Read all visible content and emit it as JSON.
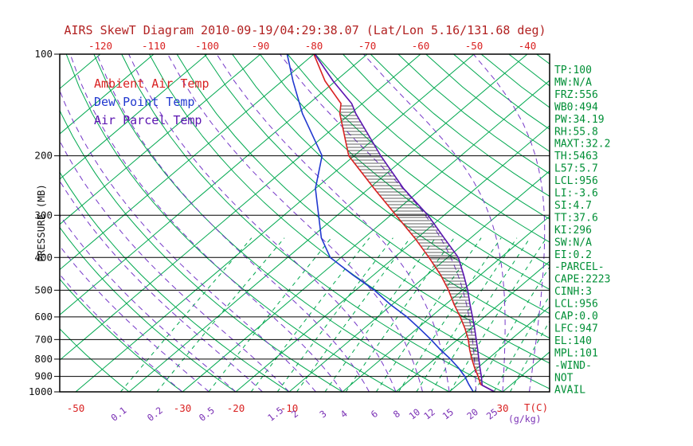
{
  "title": "AIRS SkewT Diagram 2010-09-19/04:29:38.07 (Lat/Lon 5.16/131.68 deg)",
  "colors": {
    "title": "#b22222",
    "grid_green": "#00a84f",
    "moist_adiabat_purple": "#7638c8",
    "mixing_label_purple": "#7a30b5",
    "axis_black": "#111111",
    "stats_green": "#008f36",
    "ambient_red": "#d92121",
    "dewpoint_blue": "#2138cf",
    "parcel_purple": "#5a14b0",
    "hatch_dark": "#2b2b2b"
  },
  "legend": [
    {
      "label": "Ambient Air Temp",
      "color": "#d92121"
    },
    {
      "label": "Dew Point Temp",
      "color": "#2138cf"
    },
    {
      "label": "Air Parcel Temp",
      "color": "#5a14b0"
    }
  ],
  "stats": [
    "TP:100",
    "MW:N/A",
    "FRZ:556",
    "WB0:494",
    "PW:34.19",
    "RH:55.8",
    "MAXT:32.2",
    "TH:5463",
    "L57:5.7",
    "LCL:956",
    "LI:-3.6",
    "SI:4.7",
    "TT:37.6",
    "KI:296",
    "SW:N/A",
    "EI:0.2",
    "-PARCEL-",
    "CAPE:2223",
    "CINH:3",
    "LCL:956",
    "CAP:0.0",
    "LFC:947",
    "EL:140",
    "MPL:101",
    "-WIND-",
    "NOT",
    "AVAIL"
  ],
  "chart_data": {
    "type": "line",
    "subtype": "skew-t log-p diagram",
    "title": "AIRS SkewT Diagram 2010-09-19/04:29:38.07 (Lat/Lon 5.16/131.68 deg)",
    "ylabel": "PRESSURE (MB)",
    "xlabel": "T(C)",
    "x2label": "(g/kg)",
    "pressure_ticks_mb": [
      100,
      200,
      300,
      400,
      500,
      600,
      700,
      800,
      900,
      1000
    ],
    "pressure_range_mb": [
      100,
      1000
    ],
    "top_temperature_ticks_c": [
      -120,
      -110,
      -100,
      -90,
      -80,
      -70,
      -60,
      -50,
      -40
    ],
    "bottom_temperature_ticks_c": [
      -50,
      -30,
      -20,
      -10,
      30
    ],
    "mixing_ratio_tick_labels_gkg": [
      0.1,
      0.2,
      0.5,
      1.5,
      2,
      3,
      4,
      6,
      8,
      10,
      12,
      15,
      20,
      25
    ],
    "mixing_ratio_lines_gkg": [
      0.1,
      0.2,
      0.5,
      1,
      1.5,
      2,
      3,
      4,
      6,
      8,
      10,
      12,
      15,
      20,
      25,
      30
    ],
    "isotherm_step_c": 10,
    "dry_adiabat_step_c": 10,
    "moist_adiabat_step_c": 5,
    "grid": true,
    "legend_position": "upper-left-inside",
    "series": [
      {
        "name": "Ambient Air Temp",
        "color": "#d92121",
        "points_pressure_mb_temp_c": [
          [
            1000,
            28.5
          ],
          [
            950,
            24.2
          ],
          [
            900,
            22.0
          ],
          [
            850,
            19.5
          ],
          [
            800,
            17.0
          ],
          [
            750,
            14.5
          ],
          [
            700,
            12.0
          ],
          [
            650,
            9.0
          ],
          [
            600,
            5.5
          ],
          [
            550,
            1.5
          ],
          [
            500,
            -2.6
          ],
          [
            450,
            -7.5
          ],
          [
            400,
            -13.5
          ],
          [
            350,
            -20.5
          ],
          [
            300,
            -29.0
          ],
          [
            250,
            -39.0
          ],
          [
            200,
            -51.0
          ],
          [
            150,
            -62.0
          ],
          [
            140,
            -64.0
          ],
          [
            120,
            -72.0
          ],
          [
            100,
            -80.0
          ]
        ]
      },
      {
        "name": "Dew Point Temp",
        "color": "#2138cf",
        "points_pressure_mb_temp_c": [
          [
            1000,
            24.5
          ],
          [
            950,
            22.0
          ],
          [
            900,
            19.5
          ],
          [
            850,
            16.5
          ],
          [
            800,
            13.0
          ],
          [
            750,
            9.0
          ],
          [
            700,
            5.0
          ],
          [
            650,
            0.5
          ],
          [
            600,
            -4.5
          ],
          [
            550,
            -10.5
          ],
          [
            500,
            -16.5
          ],
          [
            450,
            -24.0
          ],
          [
            400,
            -32.0
          ],
          [
            350,
            -38.0
          ],
          [
            300,
            -43.5
          ],
          [
            250,
            -50.0
          ],
          [
            200,
            -56.0
          ],
          [
            150,
            -69.0
          ],
          [
            120,
            -78.0
          ],
          [
            100,
            -85.0
          ]
        ]
      },
      {
        "name": "Air Parcel Temp",
        "color": "#5a14b0",
        "points_pressure_mb_temp_c": [
          [
            1000,
            28.5
          ],
          [
            956,
            24.7
          ],
          [
            900,
            22.6
          ],
          [
            850,
            20.5
          ],
          [
            800,
            18.3
          ],
          [
            750,
            16.0
          ],
          [
            700,
            13.5
          ],
          [
            650,
            10.8
          ],
          [
            600,
            7.8
          ],
          [
            550,
            4.5
          ],
          [
            500,
            1.0
          ],
          [
            450,
            -3.2
          ],
          [
            400,
            -8.0
          ],
          [
            350,
            -15.0
          ],
          [
            300,
            -23.0
          ],
          [
            250,
            -33.5
          ],
          [
            200,
            -45.0
          ],
          [
            150,
            -59.0
          ],
          [
            140,
            -62.0
          ],
          [
            120,
            -70.5
          ],
          [
            100,
            -79.8
          ]
        ]
      }
    ],
    "cape_hatch_region": {
      "between_series": [
        "Ambient Air Temp",
        "Air Parcel Temp"
      ],
      "from_pressure_mb": 947,
      "to_pressure_mb": 140
    }
  }
}
